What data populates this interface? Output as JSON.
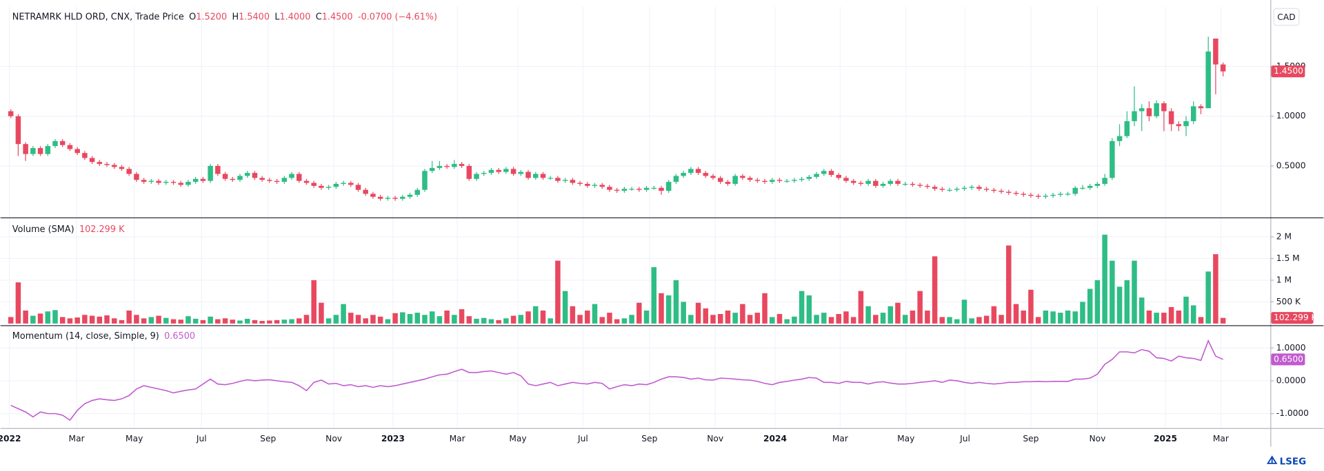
{
  "chart_data": {
    "type": "candlestick",
    "title": "NETRAMRK HLD ORD, CNX, Trade Price",
    "ohlc_legend": [
      {
        "label": "O",
        "value": "1.5200"
      },
      {
        "label": "H",
        "value": "1.5400"
      },
      {
        "label": "L",
        "value": "1.4000"
      },
      {
        "label": "C",
        "value": "1.4500"
      }
    ],
    "change": "-0.0700 (−4.61%)",
    "currency": "CAD",
    "up_color": "#2ebd85",
    "down_color": "#e8485f",
    "grid": true,
    "open": [
      1.05,
      1.0,
      0.72,
      0.62,
      0.68,
      0.62,
      0.7,
      0.75,
      0.71,
      0.67,
      0.63,
      0.58,
      0.54,
      0.52,
      0.51,
      0.49,
      0.47,
      0.42,
      0.36,
      0.34,
      0.35,
      0.33,
      0.34,
      0.33,
      0.31,
      0.34,
      0.37,
      0.35,
      0.5,
      0.42,
      0.37,
      0.36,
      0.4,
      0.43,
      0.38,
      0.36,
      0.35,
      0.34,
      0.38,
      0.42,
      0.35,
      0.33,
      0.3,
      0.28,
      0.29,
      0.32,
      0.33,
      0.31,
      0.26,
      0.22,
      0.19,
      0.17,
      0.18,
      0.17,
      0.19,
      0.21,
      0.26,
      0.45,
      0.48,
      0.5,
      0.49,
      0.52,
      0.5,
      0.37,
      0.42,
      0.43,
      0.46,
      0.44,
      0.47,
      0.42,
      0.44,
      0.38,
      0.42,
      0.38,
      0.38,
      0.35,
      0.36,
      0.33,
      0.32,
      0.3,
      0.31,
      0.29,
      0.26,
      0.25,
      0.27,
      0.27,
      0.26,
      0.28,
      0.28,
      0.25,
      0.34,
      0.4,
      0.43,
      0.47,
      0.43,
      0.4,
      0.38,
      0.34,
      0.32,
      0.4,
      0.38,
      0.36,
      0.35,
      0.34,
      0.36,
      0.35,
      0.35,
      0.36,
      0.37,
      0.39,
      0.42,
      0.45,
      0.41,
      0.38,
      0.35,
      0.33,
      0.32,
      0.35,
      0.3,
      0.32,
      0.35,
      0.32,
      0.32,
      0.31,
      0.3,
      0.29,
      0.27,
      0.26,
      0.26,
      0.27,
      0.28,
      0.29,
      0.27,
      0.26,
      0.25,
      0.24,
      0.23,
      0.22,
      0.21,
      0.2,
      0.19,
      0.2,
      0.21,
      0.22,
      0.22,
      0.28,
      0.28,
      0.3,
      0.32,
      0.38,
      0.75,
      0.8,
      0.95,
      1.05,
      1.08,
      1.0,
      1.13,
      1.05,
      0.92,
      0.9,
      0.95,
      1.1,
      1.08,
      1.78,
      1.52
    ],
    "high": [
      1.07,
      1.02,
      0.74,
      0.7,
      0.7,
      0.72,
      0.77,
      0.77,
      0.73,
      0.69,
      0.65,
      0.6,
      0.56,
      0.54,
      0.53,
      0.51,
      0.49,
      0.44,
      0.38,
      0.37,
      0.37,
      0.36,
      0.36,
      0.35,
      0.36,
      0.39,
      0.39,
      0.52,
      0.52,
      0.44,
      0.39,
      0.42,
      0.45,
      0.45,
      0.4,
      0.38,
      0.37,
      0.4,
      0.44,
      0.44,
      0.37,
      0.35,
      0.32,
      0.31,
      0.34,
      0.35,
      0.35,
      0.33,
      0.28,
      0.24,
      0.21,
      0.2,
      0.2,
      0.21,
      0.23,
      0.28,
      0.47,
      0.55,
      0.55,
      0.52,
      0.56,
      0.54,
      0.52,
      0.44,
      0.45,
      0.48,
      0.48,
      0.49,
      0.49,
      0.46,
      0.46,
      0.44,
      0.44,
      0.4,
      0.4,
      0.38,
      0.38,
      0.35,
      0.34,
      0.33,
      0.33,
      0.31,
      0.28,
      0.29,
      0.29,
      0.29,
      0.3,
      0.3,
      0.3,
      0.36,
      0.42,
      0.45,
      0.49,
      0.49,
      0.45,
      0.42,
      0.4,
      0.36,
      0.42,
      0.42,
      0.4,
      0.38,
      0.37,
      0.38,
      0.38,
      0.37,
      0.38,
      0.39,
      0.41,
      0.44,
      0.47,
      0.47,
      0.43,
      0.4,
      0.37,
      0.35,
      0.37,
      0.37,
      0.34,
      0.37,
      0.37,
      0.34,
      0.34,
      0.33,
      0.32,
      0.31,
      0.29,
      0.28,
      0.29,
      0.3,
      0.31,
      0.31,
      0.29,
      0.28,
      0.27,
      0.26,
      0.25,
      0.24,
      0.23,
      0.22,
      0.22,
      0.23,
      0.24,
      0.24,
      0.3,
      0.31,
      0.32,
      0.34,
      0.42,
      0.78,
      0.92,
      1.05,
      1.3,
      1.12,
      1.15,
      1.16,
      1.15,
      1.08,
      0.95,
      1.0,
      1.15,
      1.12,
      1.8,
      1.78,
      1.54
    ],
    "low": [
      0.98,
      0.6,
      0.55,
      0.6,
      0.6,
      0.6,
      0.68,
      0.69,
      0.65,
      0.61,
      0.56,
      0.52,
      0.5,
      0.49,
      0.47,
      0.45,
      0.4,
      0.34,
      0.32,
      0.32,
      0.31,
      0.31,
      0.31,
      0.29,
      0.29,
      0.32,
      0.33,
      0.33,
      0.4,
      0.35,
      0.34,
      0.34,
      0.38,
      0.36,
      0.34,
      0.33,
      0.32,
      0.32,
      0.36,
      0.33,
      0.31,
      0.28,
      0.26,
      0.26,
      0.27,
      0.3,
      0.29,
      0.24,
      0.2,
      0.17,
      0.15,
      0.15,
      0.15,
      0.15,
      0.17,
      0.19,
      0.24,
      0.43,
      0.46,
      0.47,
      0.47,
      0.48,
      0.35,
      0.35,
      0.4,
      0.41,
      0.42,
      0.42,
      0.4,
      0.4,
      0.36,
      0.36,
      0.36,
      0.36,
      0.33,
      0.33,
      0.31,
      0.3,
      0.28,
      0.28,
      0.27,
      0.24,
      0.23,
      0.23,
      0.25,
      0.24,
      0.24,
      0.26,
      0.21,
      0.23,
      0.32,
      0.38,
      0.41,
      0.41,
      0.38,
      0.36,
      0.32,
      0.3,
      0.3,
      0.36,
      0.34,
      0.33,
      0.32,
      0.32,
      0.33,
      0.33,
      0.33,
      0.34,
      0.35,
      0.37,
      0.4,
      0.39,
      0.36,
      0.33,
      0.31,
      0.3,
      0.3,
      0.28,
      0.28,
      0.3,
      0.3,
      0.3,
      0.29,
      0.28,
      0.27,
      0.25,
      0.24,
      0.24,
      0.24,
      0.25,
      0.26,
      0.25,
      0.24,
      0.23,
      0.22,
      0.21,
      0.2,
      0.19,
      0.18,
      0.17,
      0.17,
      0.18,
      0.19,
      0.2,
      0.2,
      0.26,
      0.26,
      0.28,
      0.3,
      0.36,
      0.7,
      0.78,
      0.9,
      0.85,
      0.95,
      0.98,
      0.85,
      0.85,
      0.85,
      0.8,
      0.92,
      1.02,
      1.08,
      1.22,
      1.4
    ],
    "close": [
      1.0,
      0.72,
      0.62,
      0.68,
      0.62,
      0.7,
      0.75,
      0.71,
      0.67,
      0.63,
      0.58,
      0.54,
      0.52,
      0.51,
      0.49,
      0.47,
      0.42,
      0.36,
      0.34,
      0.35,
      0.33,
      0.34,
      0.33,
      0.31,
      0.34,
      0.37,
      0.35,
      0.5,
      0.42,
      0.37,
      0.36,
      0.4,
      0.43,
      0.38,
      0.36,
      0.35,
      0.34,
      0.38,
      0.42,
      0.35,
      0.33,
      0.3,
      0.28,
      0.29,
      0.32,
      0.33,
      0.31,
      0.26,
      0.22,
      0.19,
      0.17,
      0.18,
      0.17,
      0.19,
      0.21,
      0.26,
      0.45,
      0.48,
      0.5,
      0.49,
      0.52,
      0.5,
      0.37,
      0.42,
      0.43,
      0.46,
      0.44,
      0.47,
      0.42,
      0.44,
      0.38,
      0.42,
      0.38,
      0.38,
      0.35,
      0.36,
      0.33,
      0.32,
      0.3,
      0.31,
      0.29,
      0.26,
      0.25,
      0.27,
      0.27,
      0.26,
      0.28,
      0.28,
      0.25,
      0.34,
      0.4,
      0.43,
      0.47,
      0.43,
      0.4,
      0.38,
      0.34,
      0.32,
      0.4,
      0.38,
      0.36,
      0.35,
      0.34,
      0.36,
      0.35,
      0.35,
      0.36,
      0.37,
      0.39,
      0.42,
      0.45,
      0.41,
      0.38,
      0.35,
      0.33,
      0.32,
      0.35,
      0.3,
      0.32,
      0.35,
      0.32,
      0.32,
      0.31,
      0.3,
      0.29,
      0.27,
      0.26,
      0.26,
      0.27,
      0.28,
      0.29,
      0.27,
      0.26,
      0.25,
      0.24,
      0.23,
      0.22,
      0.21,
      0.2,
      0.19,
      0.2,
      0.21,
      0.22,
      0.22,
      0.28,
      0.28,
      0.3,
      0.32,
      0.38,
      0.75,
      0.8,
      0.95,
      1.05,
      1.08,
      1.0,
      1.13,
      1.05,
      0.92,
      0.9,
      0.95,
      1.1,
      1.08,
      1.65,
      1.52,
      1.45
    ],
    "xlim": [
      -1.4,
      170.4
    ],
    "xticks": [
      {
        "value": -0.2,
        "label": "2022"
      },
      {
        "value": 8.9,
        "label": "Mar"
      },
      {
        "value": 16.7,
        "label": "May"
      },
      {
        "value": 25.8,
        "label": "Jul"
      },
      {
        "value": 34.8,
        "label": "Sep"
      },
      {
        "value": 43.7,
        "label": "Nov"
      },
      {
        "value": 51.7,
        "label": "2023"
      },
      {
        "value": 60.4,
        "label": "Mar"
      },
      {
        "value": 68.6,
        "label": "May"
      },
      {
        "value": 77.4,
        "label": "Jul"
      },
      {
        "value": 86.4,
        "label": "Sep"
      },
      {
        "value": 95.3,
        "label": "Nov"
      },
      {
        "value": 103.4,
        "label": "2024"
      },
      {
        "value": 112.2,
        "label": "Mar"
      },
      {
        "value": 121.1,
        "label": "May"
      },
      {
        "value": 129.1,
        "label": "Jul"
      },
      {
        "value": 138.0,
        "label": "Sep"
      },
      {
        "value": 147.0,
        "label": "Nov"
      },
      {
        "value": 156.2,
        "label": "2025"
      },
      {
        "value": 163.7,
        "label": "Mar"
      }
    ],
    "ylim": [
      0,
      2.1
    ],
    "yticks": [
      {
        "value": 1.5,
        "label": "1.5000"
      },
      {
        "value": 1.0,
        "label": "1.0000"
      },
      {
        "value": 0.5,
        "label": "0.5000"
      }
    ],
    "volume": {
      "title": "Volume (SMA)",
      "legend_value": "102.299 K",
      "values": [
        150000,
        950000,
        300000,
        180000,
        230000,
        280000,
        310000,
        150000,
        120000,
        140000,
        200000,
        180000,
        160000,
        190000,
        120000,
        80000,
        300000,
        200000,
        120000,
        150000,
        180000,
        130000,
        100000,
        90000,
        170000,
        110000,
        80000,
        160000,
        100000,
        120000,
        90000,
        70000,
        110000,
        80000,
        60000,
        70000,
        80000,
        90000,
        100000,
        120000,
        200000,
        1000000,
        480000,
        120000,
        200000,
        450000,
        250000,
        200000,
        120000,
        200000,
        160000,
        100000,
        240000,
        260000,
        220000,
        250000,
        200000,
        280000,
        170000,
        300000,
        200000,
        330000,
        170000,
        110000,
        130000,
        100000,
        80000,
        120000,
        180000,
        200000,
        280000,
        400000,
        300000,
        120000,
        1450000,
        750000,
        400000,
        200000,
        300000,
        450000,
        150000,
        250000,
        100000,
        120000,
        200000,
        480000,
        300000,
        1300000,
        700000,
        650000,
        1000000,
        500000,
        200000,
        480000,
        350000,
        200000,
        220000,
        300000,
        250000,
        450000,
        200000,
        250000,
        700000,
        150000,
        220000,
        100000,
        160000,
        750000,
        650000,
        200000,
        250000,
        150000,
        220000,
        280000,
        150000,
        750000,
        400000,
        200000,
        250000,
        400000,
        480000,
        200000,
        300000,
        750000,
        300000,
        1550000,
        150000,
        150000,
        100000,
        550000,
        120000,
        150000,
        180000,
        400000,
        200000,
        1800000,
        450000,
        300000,
        780000,
        150000,
        300000,
        280000,
        250000,
        300000,
        280000,
        500000,
        800000,
        1000000,
        2050000,
        1450000,
        850000,
        1000000,
        1450000,
        600000,
        300000,
        250000,
        250000,
        380000,
        300000,
        620000,
        420000,
        150000,
        1200000,
        1600000,
        130000
      ],
      "ylim": [
        0,
        2390000
      ],
      "yticks": [
        {
          "value": 2000000,
          "label": "2 M"
        },
        {
          "value": 1500000,
          "label": "1.5 M"
        },
        {
          "value": 1000000,
          "label": "1 M"
        },
        {
          "value": 500000,
          "label": "500 K"
        }
      ]
    },
    "momentum": {
      "title": "Momentum (14, close, Simple, 9)",
      "legend_value": "0.6500",
      "color": "#c15ad0",
      "values": [
        -0.75,
        -0.85,
        -0.95,
        -1.1,
        -0.95,
        -1.0,
        -1.0,
        -1.05,
        -1.2,
        -0.9,
        -0.7,
        -0.6,
        -0.55,
        -0.58,
        -0.6,
        -0.55,
        -0.45,
        -0.25,
        -0.15,
        -0.2,
        -0.25,
        -0.3,
        -0.37,
        -0.32,
        -0.28,
        -0.25,
        -0.1,
        0.05,
        -0.1,
        -0.12,
        -0.08,
        -0.02,
        0.03,
        0.0,
        0.02,
        0.03,
        0.0,
        -0.03,
        -0.05,
        -0.15,
        -0.3,
        -0.05,
        0.02,
        -0.1,
        -0.08,
        -0.15,
        -0.12,
        -0.18,
        -0.15,
        -0.2,
        -0.15,
        -0.18,
        -0.15,
        -0.1,
        -0.05,
        0.0,
        0.05,
        0.12,
        0.18,
        0.2,
        0.28,
        0.35,
        0.25,
        0.25,
        0.28,
        0.3,
        0.25,
        0.2,
        0.25,
        0.15,
        -0.1,
        -0.15,
        -0.1,
        -0.05,
        -0.15,
        -0.1,
        -0.05,
        -0.08,
        -0.1,
        -0.05,
        -0.08,
        -0.25,
        -0.18,
        -0.12,
        -0.15,
        -0.1,
        -0.12,
        -0.05,
        0.05,
        0.12,
        0.12,
        0.1,
        0.05,
        0.08,
        0.03,
        0.02,
        0.08,
        0.07,
        0.05,
        0.03,
        0.02,
        -0.02,
        -0.08,
        -0.12,
        -0.05,
        -0.02,
        0.02,
        0.05,
        0.1,
        0.08,
        -0.05,
        -0.05,
        -0.08,
        -0.02,
        -0.05,
        -0.05,
        -0.1,
        -0.05,
        -0.03,
        -0.07,
        -0.1,
        -0.1,
        -0.08,
        -0.05,
        -0.03,
        0.0,
        -0.05,
        0.02,
        0.0,
        -0.05,
        -0.08,
        -0.05,
        -0.08,
        -0.1,
        -0.08,
        -0.05,
        -0.05,
        -0.03,
        -0.03,
        -0.02,
        -0.03,
        -0.02,
        -0.02,
        -0.02,
        0.05,
        0.05,
        0.08,
        0.2,
        0.5,
        0.65,
        0.88,
        0.88,
        0.85,
        0.95,
        0.9,
        0.7,
        0.68,
        0.6,
        0.75,
        0.7,
        0.68,
        0.62,
        1.22,
        0.75,
        0.65
      ],
      "ylim": [
        -1.44,
        1.64
      ],
      "yticks": [
        {
          "value": 1.0,
          "label": "1.0000"
        },
        {
          "value": 0.0,
          "label": "0.0000"
        },
        {
          "value": -1.0,
          "label": "-1.0000"
        }
      ]
    },
    "footer": "LSEG"
  }
}
